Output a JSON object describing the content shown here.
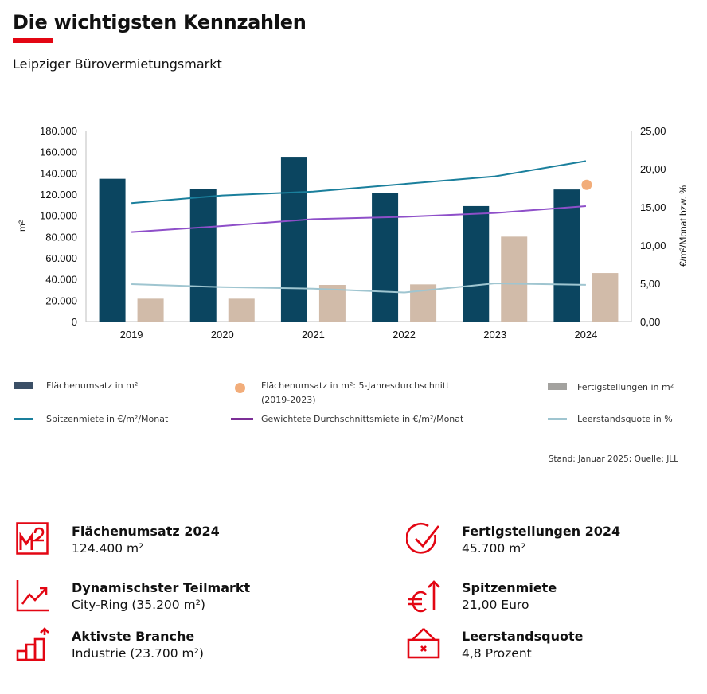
{
  "header": {
    "title": "Die wichtigsten Kennzahlen",
    "subtitle": "Leipziger Bürovermietungsmarkt",
    "accent_color": "#e30613"
  },
  "chart_data": {
    "type": "bar",
    "categories": [
      "2019",
      "2020",
      "2021",
      "2022",
      "2023",
      "2024"
    ],
    "ylabel_left": "m²",
    "ylabel_right": "€/m²/Monat bzw. %",
    "ylim_left": [
      0,
      180000
    ],
    "ylim_right": [
      0,
      25
    ],
    "yticks_left": [
      "0",
      "20.000",
      "40.000",
      "60.000",
      "80.000",
      "100.000",
      "120.000",
      "140.000",
      "160.000",
      "180.000"
    ],
    "yticks_right": [
      "0,00",
      "5,00",
      "10,00",
      "15,00",
      "20,00",
      "25,00"
    ],
    "grid": false,
    "bars": [
      {
        "name": "Flächenumsatz in m²",
        "axis": "left",
        "color": "#0b4560",
        "values": [
          134500,
          124500,
          155200,
          120800,
          108800,
          124400
        ]
      },
      {
        "name": "Fertigstellungen  in m²",
        "axis": "left",
        "color": "#d1bba9",
        "values": [
          21500,
          21500,
          34500,
          35000,
          80000,
          45700
        ]
      }
    ],
    "lines": [
      {
        "name": "Spitzenmiete in €/m²/Monat",
        "axis": "right",
        "color": "#1a7f9c",
        "values": [
          15.5,
          16.5,
          17.0,
          18.0,
          19.0,
          21.0
        ]
      },
      {
        "name": "Gewichtete Durchschnittsmiete in €/m²/Monat",
        "axis": "right",
        "color": "#8e4fc9",
        "values": [
          11.7,
          12.5,
          13.4,
          13.7,
          14.2,
          15.1
        ]
      },
      {
        "name": "Leerstandsquote  in %",
        "axis": "right",
        "color": "#9fc5d0",
        "values": [
          4.9,
          4.5,
          4.3,
          3.8,
          5.0,
          4.8
        ]
      }
    ],
    "points": [
      {
        "name": "Flächenumsatz in m²: 5-Jahresdurchschnitt (2019-2023)",
        "axis": "left",
        "color": "#f2ad7a",
        "x": "2024",
        "value": 128800
      }
    ]
  },
  "legend": {
    "flaechenumsatz": "Flächenumsatz in m²",
    "durchschnitt_line1": "Flächenumsatz in m²: 5-Jahresdurchschnitt",
    "durchschnitt_line2": "(2019-2023)",
    "fertigstellungen": "Fertigstellungen  in m²",
    "spitzenmiete": "Spitzenmiete in €/m²/Monat",
    "durchschnittsmiete": "Gewichtete Durchschnittsmiete in €/m²/Monat",
    "leerstand": "Leerstandsquote  in %"
  },
  "source": "Stand: Januar 2025;  Quelle: JLL",
  "kpis": [
    {
      "title": "Flächenumsatz 2024",
      "value": "124.400 m²",
      "icon": "square-meter-icon"
    },
    {
      "title": "Fertigstellungen 2024",
      "value": "45.700 m²",
      "icon": "checkmark-circle-icon"
    },
    {
      "title": "Dynamischster Teilmarkt",
      "value": "City-Ring (35.200 m²)",
      "icon": "trend-chart-icon"
    },
    {
      "title": "Spitzenmiete",
      "value": "21,00 Euro",
      "icon": "euro-up-icon"
    },
    {
      "title": "Aktivste Branche",
      "value": "Industrie (23.700 m²)",
      "icon": "growth-bars-icon"
    },
    {
      "title": "Leerstandsquote",
      "value": "4,8 Prozent",
      "icon": "vacancy-sign-icon"
    }
  ]
}
